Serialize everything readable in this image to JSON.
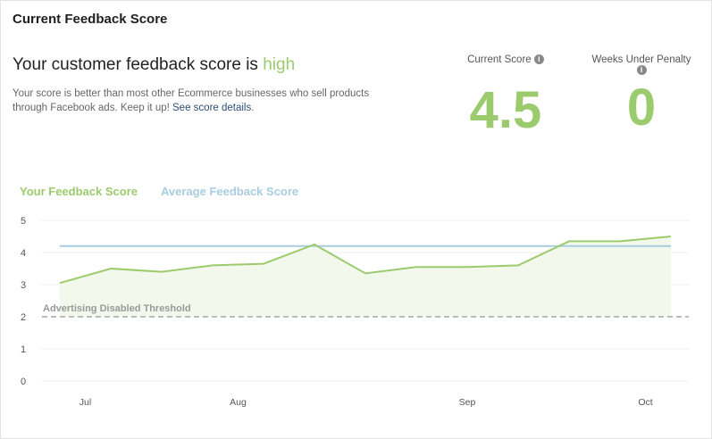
{
  "card": {
    "title": "Current Feedback Score"
  },
  "summary": {
    "headline_prefix": "Your customer feedback score is ",
    "headline_level": "high",
    "description": "Your score is better than most other Ecommerce businesses who sell products through Facebook ads. Keep it up! ",
    "details_link": "See score details",
    "details_suffix": "."
  },
  "stats": [
    {
      "label": "Current Score",
      "value": "4.5",
      "icon": "info-icon"
    },
    {
      "label": "Weeks Under Penalty",
      "value": "0",
      "icon": "info-icon"
    }
  ],
  "colors": {
    "your_score": "#9ccb6e",
    "average": "#a9cde0",
    "threshold": "#bbbbbb",
    "fill": "#f2f8ec"
  },
  "chart_data": {
    "type": "line",
    "legend": {
      "placement": "top-left"
    },
    "series": [
      {
        "name": "Your Feedback Score",
        "values": [
          3.05,
          3.5,
          3.4,
          3.6,
          3.65,
          4.25,
          3.35,
          3.55,
          3.55,
          3.6,
          4.35,
          4.35,
          4.5
        ],
        "area": true
      },
      {
        "name": "Average Feedback Score",
        "values": [
          4.2,
          4.2,
          4.2,
          4.2,
          4.2,
          4.2,
          4.2,
          4.2,
          4.2,
          4.2,
          4.2,
          4.2,
          4.2
        ]
      }
    ],
    "threshold": {
      "label": "Advertising Disabled Threshold",
      "value": 2
    },
    "ylim": [
      0,
      5
    ],
    "y_ticks": [
      "0",
      "1",
      "2",
      "3",
      "4",
      "5"
    ],
    "x_ticks": [
      {
        "label": "Jul",
        "at": 0.5
      },
      {
        "label": "Aug",
        "at": 3.5
      },
      {
        "label": "Sep",
        "at": 8
      },
      {
        "label": "Oct",
        "at": 11.5
      }
    ],
    "grid": true
  }
}
